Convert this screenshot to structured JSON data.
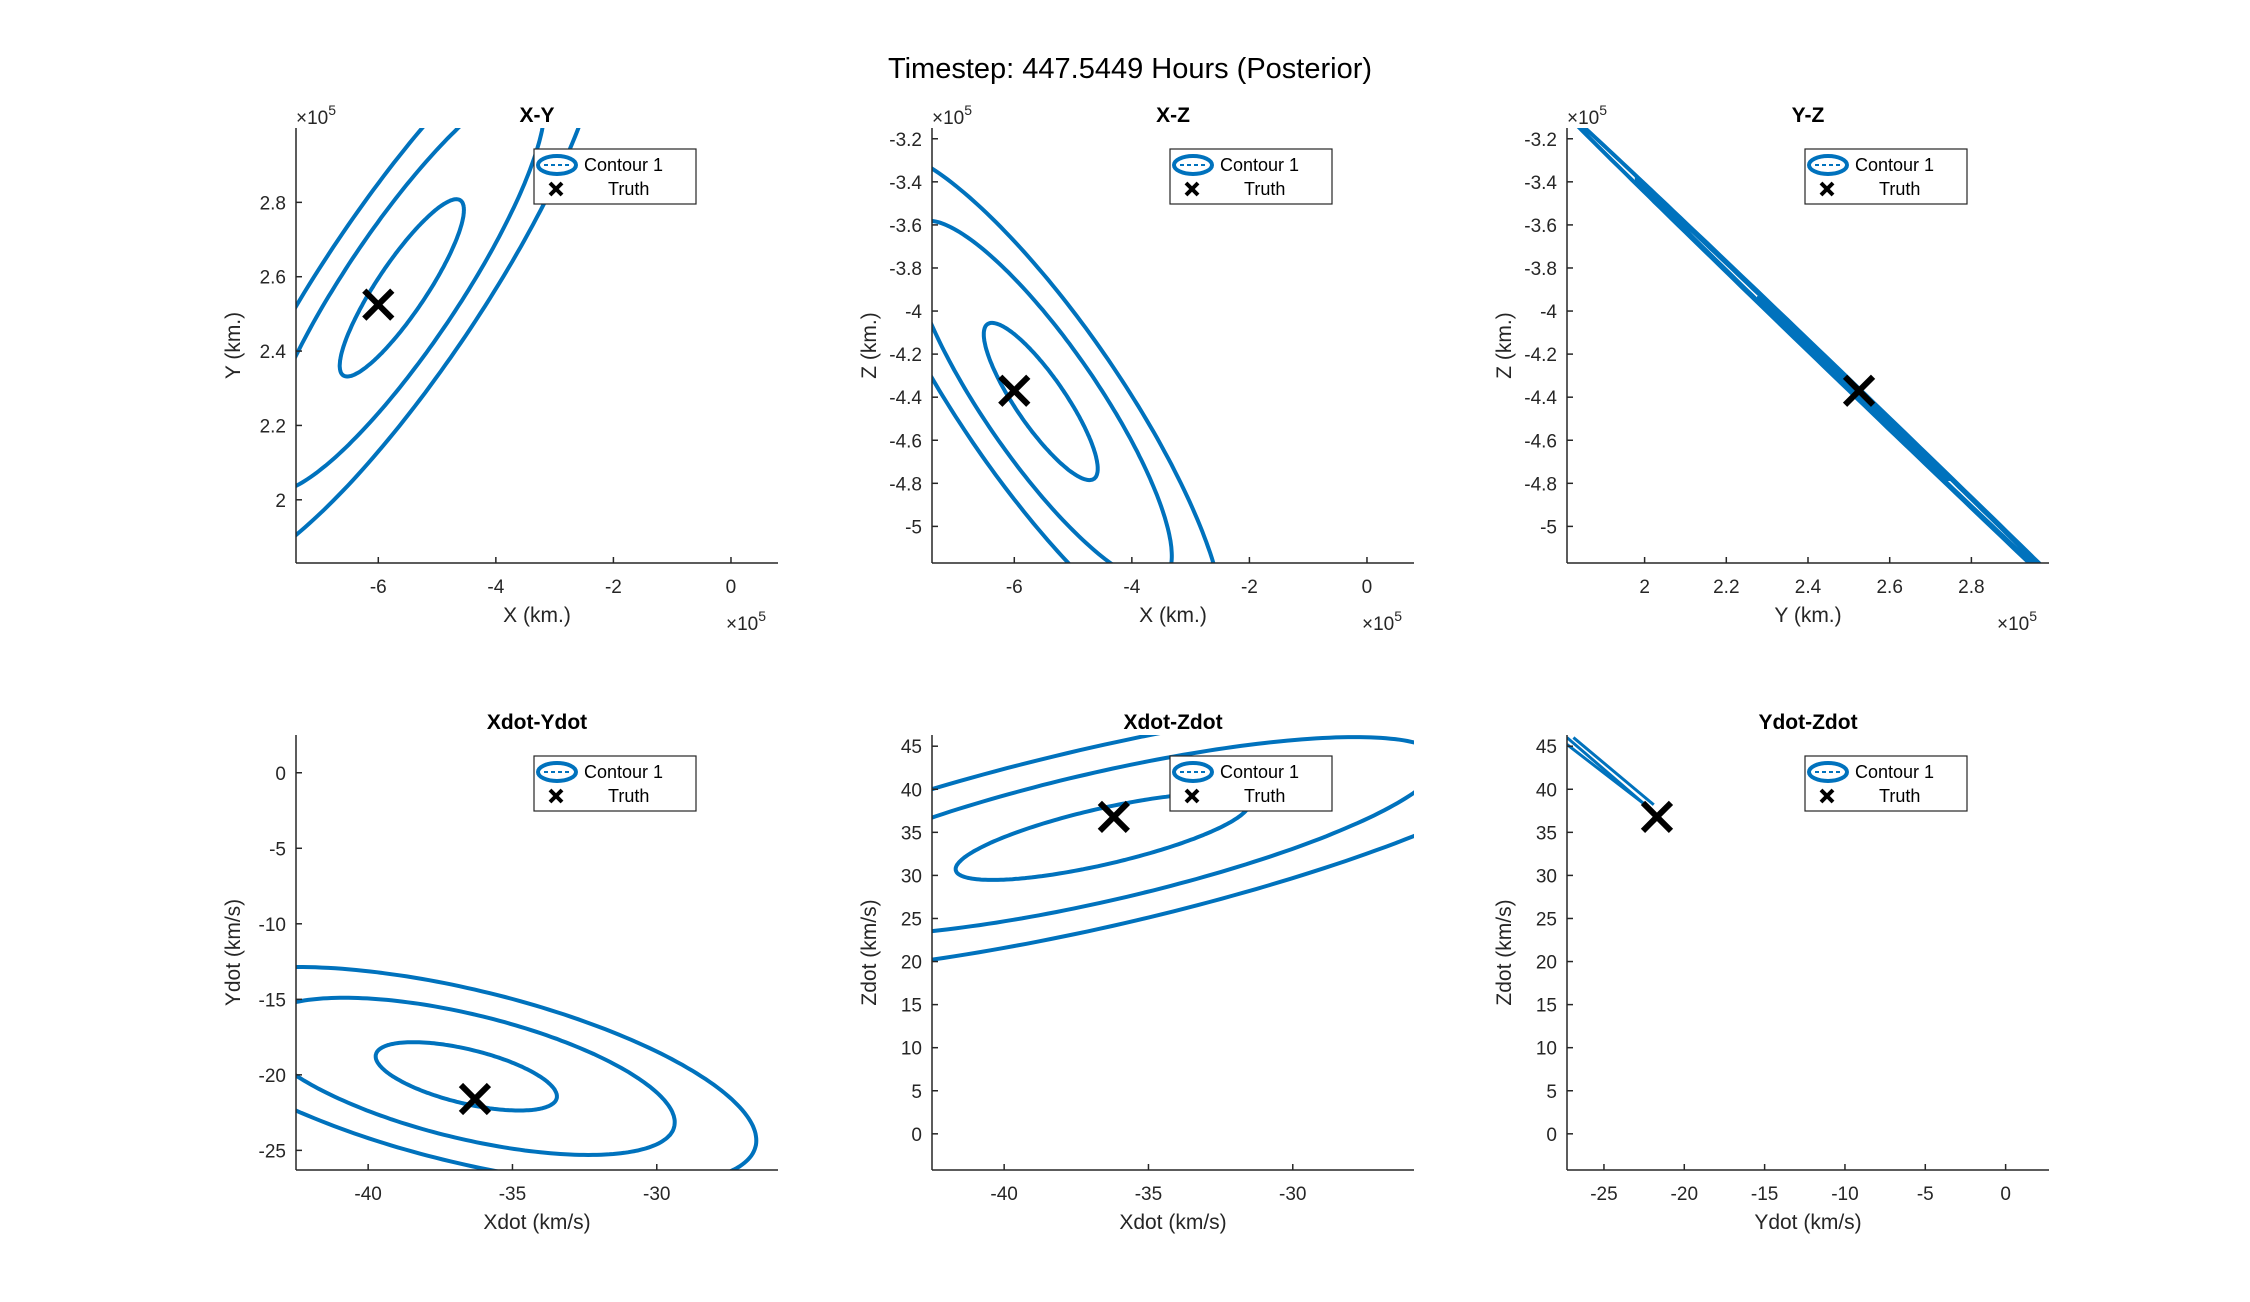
{
  "figure_title": "Timestep: 447.5449 Hours (Posterior)",
  "colors": {
    "contour": "#0072bd",
    "truth": "#000000",
    "axis": "#262626"
  },
  "chart_data": [
    {
      "type": "contour",
      "title": "X-Y",
      "xlabel": "X (km.)",
      "ylabel": "Y (km.)",
      "x_exponent": "5",
      "y_exponent": "5",
      "xlim": [
        -7.4,
        0.8
      ],
      "ylim": [
        1.83,
        3.0
      ],
      "xticks": [
        -6,
        -4,
        -2,
        0
      ],
      "xtick_labels": [
        "-6",
        "-4",
        "-2",
        "0"
      ],
      "yticks": [
        2.0,
        2.2,
        2.4,
        2.6,
        2.8
      ],
      "ytick_labels": [
        "2",
        "2.2",
        "2.4",
        "2.6",
        "2.8"
      ],
      "legend": [
        "Contour 1",
        "Truth"
      ],
      "legend_position": "top-right",
      "truth": [
        -6.0,
        2.525
      ],
      "center": [
        -5.6,
        2.57
      ],
      "ellipse": {
        "ux": 1.0,
        "uy": 0.235,
        "vx": -0.34,
        "vy": 0.04,
        "levels": [
          1,
          2.3,
          3.2
        ]
      }
    },
    {
      "type": "contour",
      "title": "X-Z",
      "xlabel": "X (km.)",
      "ylabel": "Z (km.)",
      "x_exponent": "5",
      "y_exponent": "5",
      "xlim": [
        -7.4,
        0.8
      ],
      "ylim": [
        -5.17,
        -3.15
      ],
      "xticks": [
        -6,
        -4,
        -2,
        0
      ],
      "xtick_labels": [
        "-6",
        "-4",
        "-2",
        "0"
      ],
      "yticks": [
        -5.0,
        -4.8,
        -4.6,
        -4.4,
        -4.2,
        -4.0,
        -3.8,
        -3.6,
        -3.4,
        -3.2
      ],
      "ytick_labels": [
        "-5",
        "-4.8",
        "-4.6",
        "-4.4",
        "-4.2",
        "-4",
        "-3.8",
        "-3.6",
        "-3.4",
        "-3.2"
      ],
      "legend": [
        "Contour 1",
        "Truth"
      ],
      "legend_position": "top-right",
      "truth": [
        -6.0,
        -4.37
      ],
      "center": [
        -5.55,
        -4.42
      ],
      "ellipse": {
        "ux": 0.9,
        "uy": -0.36,
        "vx": -0.36,
        "vy": -0.06,
        "levels": [
          1,
          2.3,
          3.2
        ]
      }
    },
    {
      "type": "contour",
      "title": "Y-Z",
      "xlabel": "Y (km.)",
      "ylabel": "Z (km.)",
      "x_exponent": "5",
      "y_exponent": "5",
      "xlim": [
        1.81,
        2.99
      ],
      "ylim": [
        -5.17,
        -3.15
      ],
      "xticks": [
        2.0,
        2.2,
        2.4,
        2.6,
        2.8
      ],
      "xtick_labels": [
        "2",
        "2.2",
        "2.4",
        "2.6",
        "2.8"
      ],
      "yticks": [
        -5.0,
        -4.8,
        -4.6,
        -4.4,
        -4.2,
        -4.0,
        -3.8,
        -3.6,
        -3.4,
        -3.2
      ],
      "ytick_labels": [
        "-5",
        "-4.8",
        "-4.6",
        "-4.4",
        "-4.2",
        "-4",
        "-3.8",
        "-3.6",
        "-3.4",
        "-3.2"
      ],
      "legend": [
        "Contour 1",
        "Truth"
      ],
      "legend_position": "top-right",
      "truth": [
        2.525,
        -4.37
      ],
      "center": [
        2.51,
        -4.36
      ],
      "ellipse": {
        "ux": 0.23,
        "uy": -0.42,
        "vx": 0.0035,
        "vy": 0.0022,
        "levels": [
          1,
          2.3,
          3.2
        ]
      }
    },
    {
      "type": "contour",
      "title": "Xdot-Ydot",
      "xlabel": "Xdot (km/s)",
      "ylabel": "Ydot (km/s)",
      "x_exponent": "",
      "y_exponent": "",
      "xlim": [
        -42.5,
        -25.8
      ],
      "ylim": [
        -26.3,
        2.5
      ],
      "xticks": [
        -40,
        -35,
        -30
      ],
      "xtick_labels": [
        "-40",
        "-35",
        "-30"
      ],
      "yticks": [
        -25,
        -20,
        -15,
        -10,
        -5,
        0
      ],
      "ytick_labels": [
        "-25",
        "-20",
        "-15",
        "-10",
        "-5",
        "0"
      ],
      "legend": [
        "Contour 1",
        "Truth"
      ],
      "legend_position": "top-right",
      "truth": [
        -36.3,
        -21.6
      ],
      "center": [
        -36.6,
        -20.1
      ],
      "ellipse": {
        "ux": 3.1,
        "uy": -1.6,
        "vx": -0.5,
        "vy": -1.6,
        "levels": [
          1,
          2.3,
          3.2
        ]
      }
    },
    {
      "type": "contour",
      "title": "Xdot-Zdot",
      "xlabel": "Xdot (km/s)",
      "ylabel": "Zdot (km/s)",
      "x_exponent": "",
      "y_exponent": "",
      "xlim": [
        -42.5,
        -25.8
      ],
      "ylim": [
        -4.2,
        46.3
      ],
      "xticks": [
        -40,
        -35,
        -30
      ],
      "xtick_labels": [
        "-40",
        "-35",
        "-30"
      ],
      "yticks": [
        0,
        5,
        10,
        15,
        20,
        25,
        30,
        35,
        40,
        45
      ],
      "ytick_labels": [
        "0",
        "5",
        "10",
        "15",
        "20",
        "25",
        "30",
        "35",
        "40",
        "45"
      ],
      "legend": [
        "Contour 1",
        "Truth"
      ],
      "legend_position": "top-right",
      "truth": [
        -36.2,
        36.8
      ],
      "center": [
        -36.6,
        34.5
      ],
      "ellipse": {
        "ux": 5.0,
        "uy": 4.3,
        "vx": -0.9,
        "vy": 2.6,
        "levels": [
          1,
          2.3,
          3.2
        ]
      }
    },
    {
      "type": "contour",
      "title": "Ydot-Zdot",
      "xlabel": "Ydot (km/s)",
      "ylabel": "Zdot (km/s)",
      "x_exponent": "",
      "y_exponent": "",
      "xlim": [
        -27.3,
        2.7
      ],
      "ylim": [
        -4.2,
        46.3
      ],
      "xticks": [
        -25,
        -20,
        -15,
        -10,
        -5,
        0
      ],
      "xtick_labels": [
        "-25",
        "-20",
        "-15",
        "-10",
        "-5",
        "0"
      ],
      "yticks": [
        0,
        5,
        10,
        15,
        20,
        25,
        30,
        35,
        40,
        45
      ],
      "ytick_labels": [
        "0",
        "5",
        "10",
        "15",
        "20",
        "25",
        "30",
        "35",
        "40",
        "45"
      ],
      "legend": [
        "Contour 1",
        "Truth"
      ],
      "legend_position": "top-right",
      "truth": [
        -21.7,
        36.8
      ],
      "segments": [
        [
          [
            -27.3,
            46.0
          ],
          [
            -22.0,
            37.5
          ]
        ],
        [
          [
            -27.3,
            45.2
          ],
          [
            -22.3,
            38.0
          ]
        ],
        [
          [
            -26.9,
            46.0
          ],
          [
            -21.9,
            38.2
          ]
        ]
      ]
    }
  ]
}
